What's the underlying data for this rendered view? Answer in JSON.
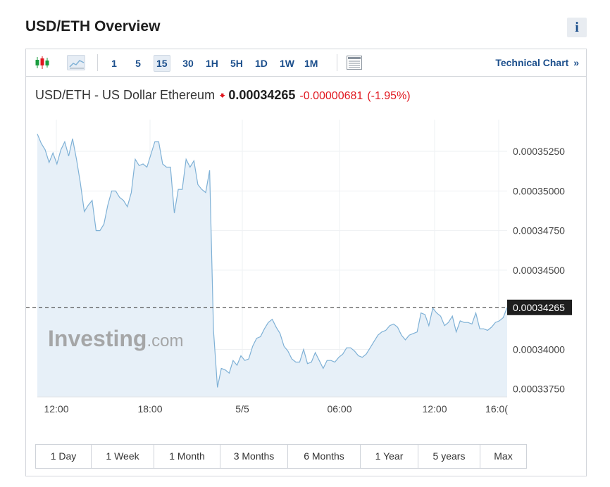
{
  "page_title": "USD/ETH Overview",
  "info_label": "i",
  "toolbar": {
    "timeframes": [
      "1",
      "5",
      "15",
      "30",
      "1H",
      "5H",
      "1D",
      "1W",
      "1M"
    ],
    "active_timeframe": "15",
    "technical_chart": "Technical Chart",
    "technical_chart_arrow": "»"
  },
  "quote": {
    "name": "USD/ETH - US Dollar Ethereum",
    "direction_icon": "down-arrow",
    "price": "0.00034265",
    "change": "-0.00000681",
    "change_pct": "(-1.95%)"
  },
  "colors": {
    "line": "#7fb1d6",
    "fill": "#e7f0f8",
    "down": "#e0171f",
    "link": "#1c4f8c",
    "current_label_bg": "#1e1e1e"
  },
  "watermark": {
    "brand": "Investing",
    "suffix": ".com"
  },
  "range_buttons": [
    "1 Day",
    "1 Week",
    "1 Month",
    "3 Months",
    "6 Months",
    "1 Year",
    "5 years",
    "Max"
  ],
  "chart_data": {
    "type": "area",
    "series": [
      {
        "values": [
          0.0003536,
          0.000353,
          0.0003526,
          0.0003518,
          0.0003524,
          0.0003517,
          0.0003526,
          0.0003531,
          0.0003522,
          0.0003533,
          0.000352,
          0.0003505,
          0.0003487,
          0.0003491,
          0.0003494,
          0.0003475,
          0.0003475,
          0.0003479,
          0.0003491,
          0.00035,
          0.00035,
          0.0003496,
          0.0003494,
          0.000349,
          0.0003499,
          0.000352,
          0.0003516,
          0.0003517,
          0.0003515,
          0.0003523,
          0.0003531,
          0.0003531,
          0.0003517,
          0.0003515,
          0.0003515,
          0.0003486,
          0.0003501,
          0.0003501,
          0.000352,
          0.0003515,
          0.0003519,
          0.0003504,
          0.0003501,
          0.0003499,
          0.0003513,
          0.0003412,
          0.0003376,
          0.0003388,
          0.0003387,
          0.0003385,
          0.0003393,
          0.000339,
          0.0003396,
          0.0003393,
          0.0003394,
          0.0003402,
          0.0003407,
          0.0003408,
          0.0003413,
          0.0003417,
          0.0003419,
          0.0003414,
          0.000341,
          0.0003402,
          0.0003399,
          0.0003394,
          0.0003392,
          0.0003392,
          0.00034,
          0.0003391,
          0.0003392,
          0.0003398,
          0.0003393,
          0.0003388,
          0.0003393,
          0.0003393,
          0.0003392,
          0.0003395,
          0.0003397,
          0.0003401,
          0.0003401,
          0.0003399,
          0.0003396,
          0.0003395,
          0.0003397,
          0.0003401,
          0.0003405,
          0.0003409,
          0.0003411,
          0.0003412,
          0.0003415,
          0.0003416,
          0.0003414,
          0.0003409,
          0.0003406,
          0.0003409,
          0.000341,
          0.0003411,
          0.0003423,
          0.0003422,
          0.0003415,
          0.0003426,
          0.0003423,
          0.0003421,
          0.0003415,
          0.0003417,
          0.0003421,
          0.0003411,
          0.0003418,
          0.0003417,
          0.0003417,
          0.0003416,
          0.0003423,
          0.0003413,
          0.0003413,
          0.0003412,
          0.0003414,
          0.0003417,
          0.0003418,
          0.000342,
          0.00034265
        ]
      }
    ],
    "x_tick_labels": [
      "12:00",
      "18:00",
      "5/5",
      "06:00",
      "12:00",
      "16:0("
    ],
    "y_ticks": [
      "0.00035250",
      "0.00035000",
      "0.00034750",
      "0.00034500",
      "0.00034265",
      "0.00034000",
      "0.00033750"
    ],
    "y_tick_values": [
      0.0003525,
      0.00035,
      0.0003475,
      0.000345,
      0.00034265,
      0.00034,
      0.0003375
    ],
    "current_index": 4,
    "ylim": [
      0.000337,
      0.0003545
    ],
    "grid": true
  }
}
